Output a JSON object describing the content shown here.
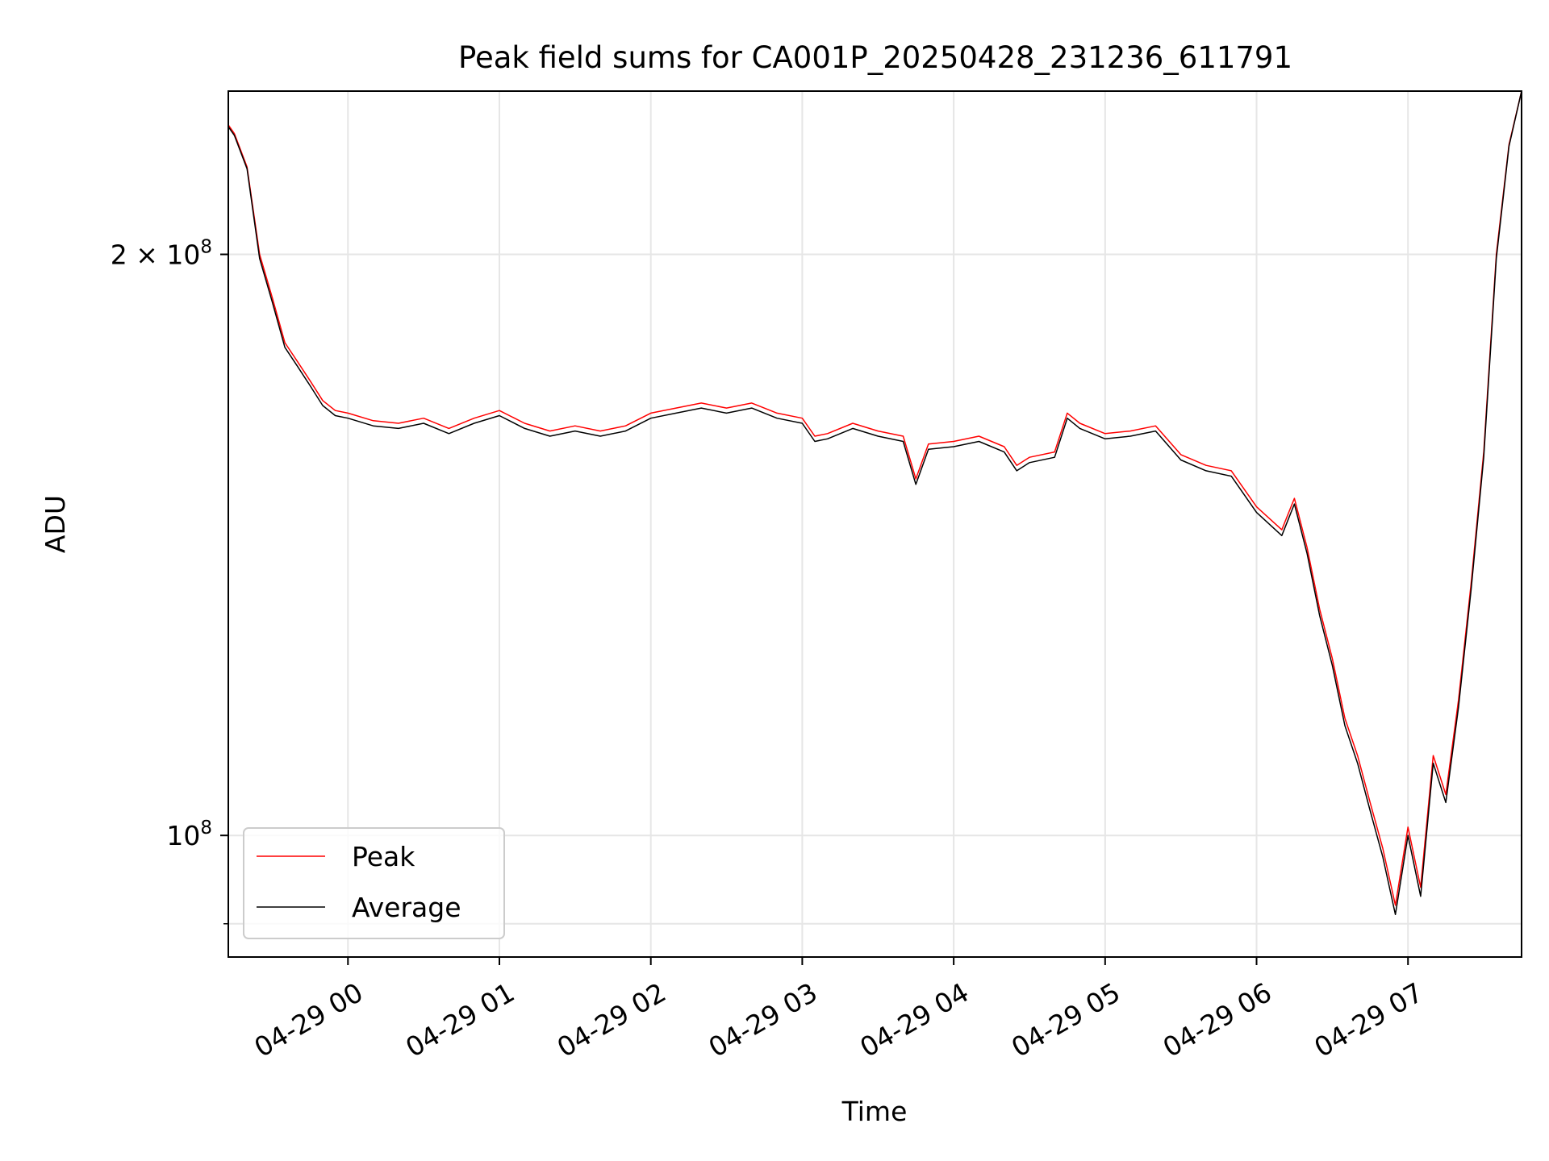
{
  "chart_data": {
    "type": "line",
    "title": "Peak field sums for CA001P_20250428_231236_611791",
    "xlabel": "Time",
    "ylabel": "ADU",
    "y_scale": "log",
    "ylim": [
      86500000,
      243000000
    ],
    "xlim": [
      "2025-04-28 23:12:36",
      "2025-04-29 07:45:00"
    ],
    "x_ticks": [
      "04-29 00",
      "04-29 01",
      "04-29 02",
      "04-29 03",
      "04-29 04",
      "04-29 05",
      "04-29 06",
      "04-29 07"
    ],
    "x_tick_times": [
      "2025-04-29 00:00",
      "2025-04-29 01:00",
      "2025-04-29 02:00",
      "2025-04-29 03:00",
      "2025-04-29 04:00",
      "2025-04-29 05:00",
      "2025-04-29 06:00",
      "2025-04-29 07:00"
    ],
    "y_major_ticks": [
      {
        "value": 100000000,
        "label_base": "10",
        "label_exp": "8",
        "label_mult": ""
      },
      {
        "value": 200000000,
        "label_base": "10",
        "label_exp": "8",
        "label_mult": "2 × "
      }
    ],
    "y_minor_ticks": [
      90000000
    ],
    "grid": true,
    "legend_position": "lower-left",
    "x": [
      "2025-04-28 23:12",
      "2025-04-28 23:15",
      "2025-04-28 23:20",
      "2025-04-28 23:25",
      "2025-04-28 23:30",
      "2025-04-28 23:35",
      "2025-04-28 23:40",
      "2025-04-28 23:45",
      "2025-04-28 23:50",
      "2025-04-28 23:55",
      "2025-04-29 00:00",
      "2025-04-29 00:10",
      "2025-04-29 00:20",
      "2025-04-29 00:30",
      "2025-04-29 00:40",
      "2025-04-29 00:50",
      "2025-04-29 01:00",
      "2025-04-29 01:10",
      "2025-04-29 01:20",
      "2025-04-29 01:30",
      "2025-04-29 01:40",
      "2025-04-29 01:50",
      "2025-04-29 02:00",
      "2025-04-29 02:10",
      "2025-04-29 02:20",
      "2025-04-29 02:30",
      "2025-04-29 02:40",
      "2025-04-29 02:50",
      "2025-04-29 03:00",
      "2025-04-29 03:05",
      "2025-04-29 03:10",
      "2025-04-29 03:20",
      "2025-04-29 03:30",
      "2025-04-29 03:40",
      "2025-04-29 03:45",
      "2025-04-29 03:50",
      "2025-04-29 04:00",
      "2025-04-29 04:10",
      "2025-04-29 04:20",
      "2025-04-29 04:25",
      "2025-04-29 04:30",
      "2025-04-29 04:40",
      "2025-04-29 04:45",
      "2025-04-29 04:50",
      "2025-04-29 05:00",
      "2025-04-29 05:10",
      "2025-04-29 05:20",
      "2025-04-29 05:30",
      "2025-04-29 05:40",
      "2025-04-29 05:50",
      "2025-04-29 06:00",
      "2025-04-29 06:10",
      "2025-04-29 06:15",
      "2025-04-29 06:20",
      "2025-04-29 06:25",
      "2025-04-29 06:30",
      "2025-04-29 06:35",
      "2025-04-29 06:40",
      "2025-04-29 06:45",
      "2025-04-29 06:50",
      "2025-04-29 06:55",
      "2025-04-29 07:00",
      "2025-04-29 07:05",
      "2025-04-29 07:10",
      "2025-04-29 07:15",
      "2025-04-29 07:20",
      "2025-04-29 07:25",
      "2025-04-29 07:30",
      "2025-04-29 07:35",
      "2025-04-29 07:40",
      "2025-04-29 07:45"
    ],
    "series": [
      {
        "name": "Peak",
        "color": "#ff0000",
        "values": [
          234000000,
          231000000,
          222000000,
          200000000,
          190000000,
          180000000,
          176000000,
          172000000,
          168000000,
          166000000,
          165500000,
          164000000,
          163500000,
          164500000,
          162500000,
          164500000,
          166000000,
          163500000,
          162000000,
          163000000,
          162000000,
          163000000,
          165500000,
          166500000,
          167500000,
          166500000,
          167500000,
          165500000,
          164500000,
          161000000,
          161500000,
          163500000,
          162000000,
          161000000,
          153000000,
          159500000,
          160000000,
          161000000,
          159000000,
          155500000,
          157000000,
          158000000,
          165500000,
          163500000,
          161500000,
          162000000,
          163000000,
          157500000,
          155500000,
          154500000,
          148000000,
          144000000,
          149500000,
          141000000,
          131000000,
          123500000,
          115000000,
          110000000,
          104000000,
          98500000,
          92000000,
          101000000,
          94000000,
          110000000,
          105000000,
          117500000,
          135000000,
          158000000,
          200000000,
          228000000,
          243000000
        ]
      },
      {
        "name": "Average",
        "color": "#000000",
        "values": [
          233500000,
          230500000,
          221500000,
          199000000,
          189000000,
          179000000,
          175000000,
          171000000,
          167000000,
          165000000,
          164500000,
          163000000,
          162500000,
          163500000,
          161500000,
          163500000,
          165000000,
          162500000,
          161000000,
          162000000,
          161000000,
          162000000,
          164500000,
          165500000,
          166500000,
          165500000,
          166500000,
          164500000,
          163500000,
          160000000,
          160500000,
          162500000,
          161000000,
          160000000,
          152000000,
          158500000,
          159000000,
          160000000,
          158000000,
          154500000,
          156000000,
          157000000,
          164500000,
          162500000,
          160500000,
          161000000,
          162000000,
          156500000,
          154500000,
          153500000,
          147000000,
          143000000,
          148500000,
          140000000,
          130000000,
          122500000,
          114000000,
          109000000,
          103000000,
          97500000,
          91000000,
          100000000,
          93000000,
          109000000,
          104000000,
          116500000,
          134000000,
          157000000,
          199000000,
          227500000,
          243000000
        ]
      }
    ]
  }
}
